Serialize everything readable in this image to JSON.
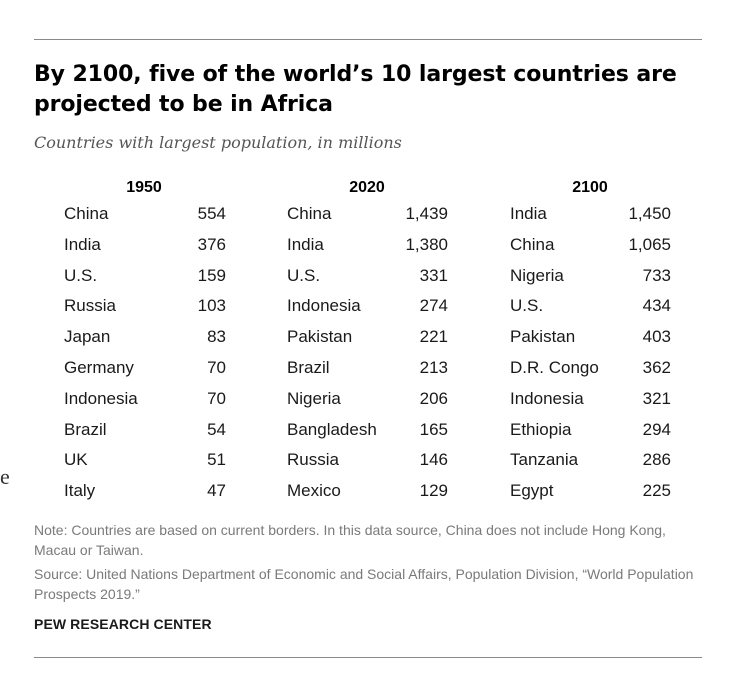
{
  "title": "By 2100, five of the world’s 10 largest countries are projected to be in Africa",
  "subtitle": "Countries with largest population, in millions",
  "stray_text": "e",
  "note": "Note: Countries are based on current borders. In this data source, China does not include Hong Kong, Macau or Taiwan.",
  "source": "Source: United Nations Department of Economic and Social Affairs, Population Division, “World Population Prospects 2019.”",
  "brand": "PEW RESEARCH CENTER",
  "chart_data": {
    "type": "table",
    "title": "By 2100, five of the world’s 10 largest countries are projected to be in Africa",
    "subtitle": "Countries with largest population, in millions",
    "columns": [
      {
        "year": "1950",
        "rows": [
          {
            "country": "China",
            "value": "554"
          },
          {
            "country": "India",
            "value": "376"
          },
          {
            "country": "U.S.",
            "value": "159"
          },
          {
            "country": "Russia",
            "value": "103"
          },
          {
            "country": "Japan",
            "value": "83"
          },
          {
            "country": "Germany",
            "value": "70"
          },
          {
            "country": "Indonesia",
            "value": "70"
          },
          {
            "country": "Brazil",
            "value": "54"
          },
          {
            "country": "UK",
            "value": "51"
          },
          {
            "country": "Italy",
            "value": "47"
          }
        ]
      },
      {
        "year": "2020",
        "rows": [
          {
            "country": "China",
            "value": "1,439"
          },
          {
            "country": "India",
            "value": "1,380"
          },
          {
            "country": "U.S.",
            "value": "331"
          },
          {
            "country": "Indonesia",
            "value": "274"
          },
          {
            "country": "Pakistan",
            "value": "221"
          },
          {
            "country": "Brazil",
            "value": "213"
          },
          {
            "country": "Nigeria",
            "value": "206"
          },
          {
            "country": "Bangladesh",
            "value": "165"
          },
          {
            "country": "Russia",
            "value": "146"
          },
          {
            "country": "Mexico",
            "value": "129"
          }
        ]
      },
      {
        "year": "2100",
        "rows": [
          {
            "country": "India",
            "value": "1,450"
          },
          {
            "country": "China",
            "value": "1,065"
          },
          {
            "country": "Nigeria",
            "value": "733"
          },
          {
            "country": "U.S.",
            "value": "434"
          },
          {
            "country": "Pakistan",
            "value": "403"
          },
          {
            "country": "D.R. Congo",
            "value": "362"
          },
          {
            "country": "Indonesia",
            "value": "321"
          },
          {
            "country": "Ethiopia",
            "value": "294"
          },
          {
            "country": "Tanzania",
            "value": "286"
          },
          {
            "country": "Egypt",
            "value": "225"
          }
        ]
      }
    ]
  }
}
